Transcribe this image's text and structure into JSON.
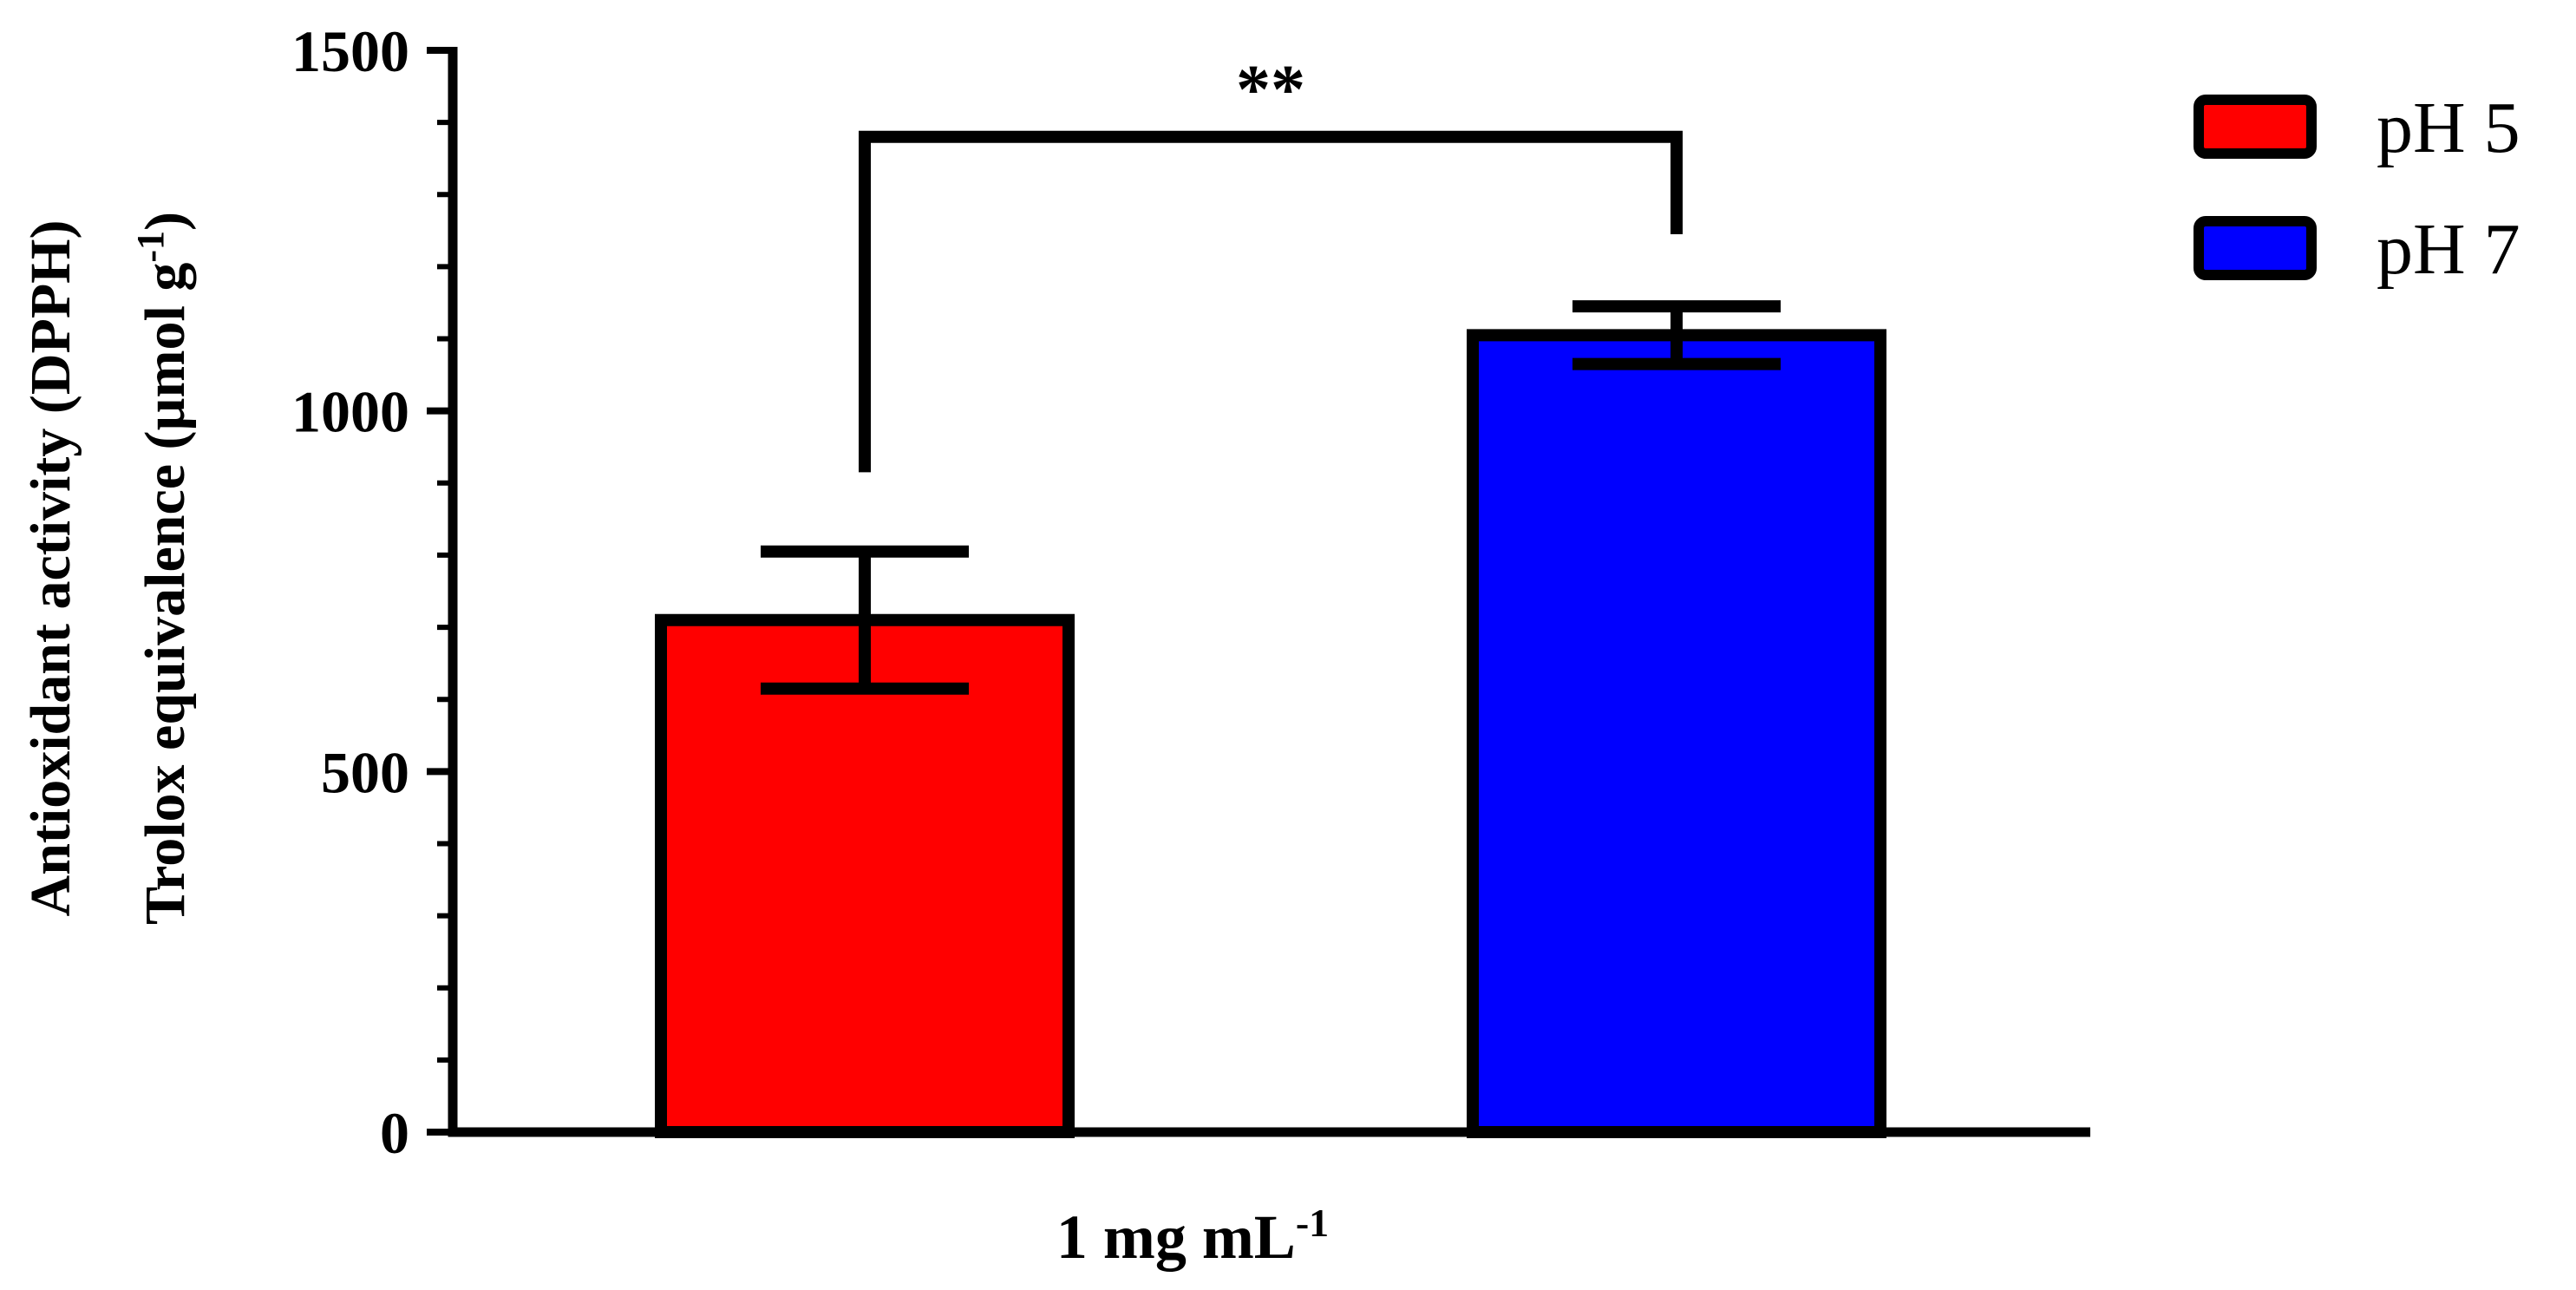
{
  "chart_data": {
    "type": "bar",
    "title": "",
    "xlabel": "",
    "ylabel_line1": "Antioxidant activity (DPPH)",
    "ylabel_line2": "Trolox equivalence (µmol g",
    "ylabel_line2_sup": "-1",
    "ylabel_line2_end": ")",
    "ylim": [
      0,
      1500
    ],
    "yticks": [
      0,
      500,
      1000,
      1500
    ],
    "categories": [
      "1 mg mL"
    ],
    "category_sup": "-1",
    "series": [
      {
        "name": "pH 5",
        "value": 710,
        "error": 95,
        "color": "#ff0000"
      },
      {
        "name": "pH 7",
        "value": 1105,
        "error": 40,
        "color": "#0000ff"
      }
    ],
    "significance": {
      "label": "**",
      "between": [
        "pH 5",
        "pH 7"
      ]
    },
    "legend_position": "top-right",
    "grid": false
  }
}
